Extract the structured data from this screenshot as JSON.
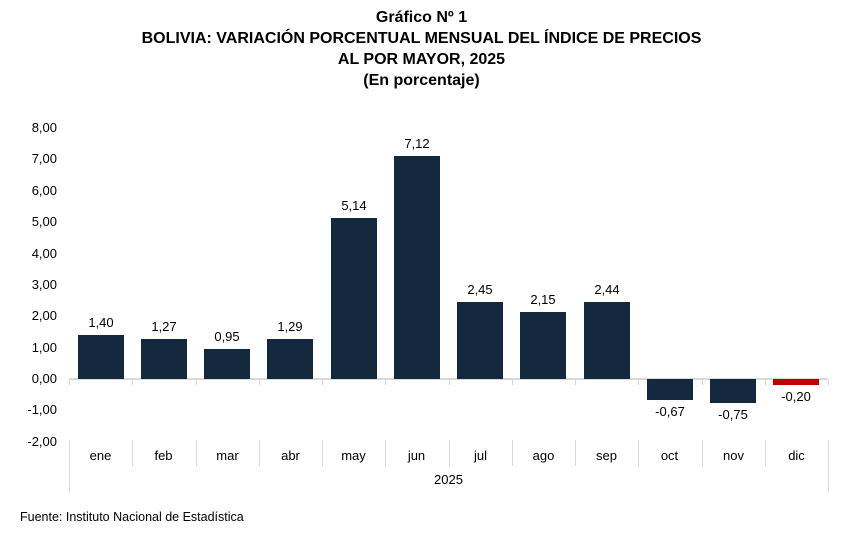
{
  "title": {
    "line1": "Gráfico Nº 1",
    "line2": "BOLIVIA: VARIACIÓN PORCENTUAL MENSUAL DEL ÍNDICE DE PRECIOS",
    "line3": "AL POR MAYOR, 2025",
    "line4": "(En porcentaje)"
  },
  "chart_data": {
    "type": "bar",
    "title": "Gráfico Nº 1 — BOLIVIA: VARIACIÓN PORCENTUAL MENSUAL DEL ÍNDICE DE PRECIOS AL POR MAYOR, 2025 (En porcentaje)",
    "categories": [
      "ene",
      "feb",
      "mar",
      "abr",
      "may",
      "jun",
      "jul",
      "ago",
      "sep",
      "oct",
      "nov",
      "dic"
    ],
    "values": [
      1.4,
      1.27,
      0.95,
      1.29,
      5.14,
      7.12,
      2.45,
      2.15,
      2.44,
      -0.67,
      -0.75,
      -0.2
    ],
    "labels": [
      "1,40",
      "1,27",
      "0,95",
      "1,29",
      "5,14",
      "7,12",
      "2,45",
      "2,15",
      "2,44",
      "-0,67",
      "-0,75",
      "-0,20"
    ],
    "x_group_label": "2025",
    "xlabel": "2025",
    "ylabel": "",
    "ylim": [
      -2,
      8
    ],
    "ytick_step": 1,
    "ytick_labels": [
      "8,00",
      "7,00",
      "6,00",
      "5,00",
      "4,00",
      "3,00",
      "2,00",
      "1,00",
      "0,00",
      "-1,00",
      "-2,00"
    ],
    "grid": false,
    "legend": "none",
    "bar_color": "#14293E",
    "highlight_index": 11,
    "highlight_color": "#C00000",
    "axis_color": "#D9D9D9"
  },
  "footer": {
    "source": "Fuente: Instituto Nacional de Estadística"
  }
}
